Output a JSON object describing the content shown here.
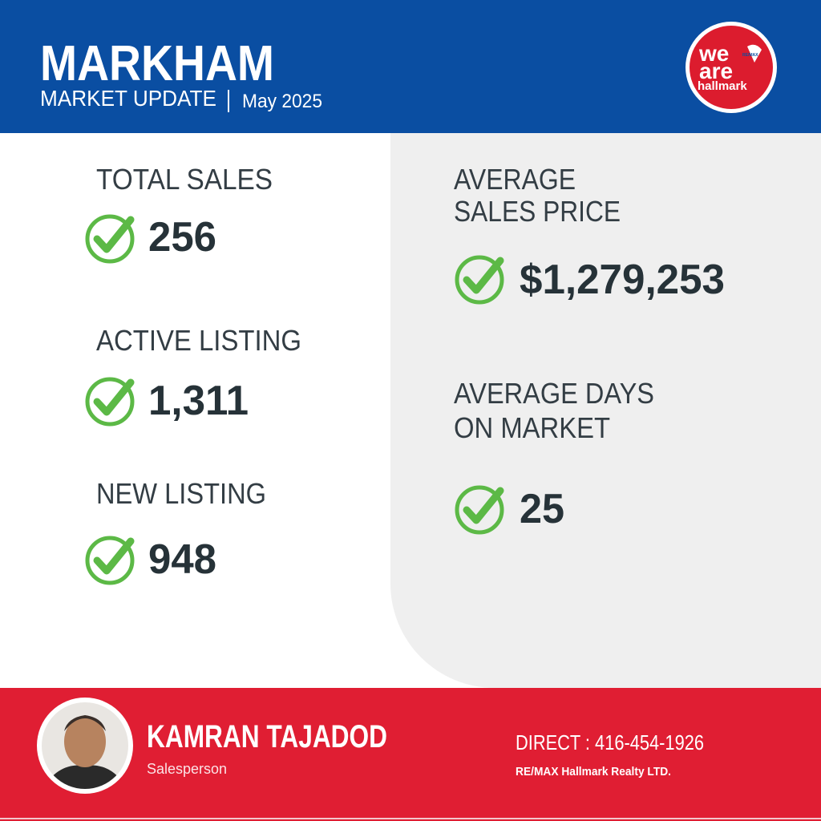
{
  "header": {
    "title": "MARKHAM",
    "subtitle": "MARKET UPDATE",
    "date": "May 2025"
  },
  "logo": {
    "line1": "we",
    "line2": "are",
    "line3": "hallmark",
    "badge": "RE/MAX"
  },
  "stats": [
    {
      "label": [
        "TOTAL SALES"
      ],
      "value": "256"
    },
    {
      "label": [
        "ACTIVE LISTING"
      ],
      "value": "1,311"
    },
    {
      "label": [
        "NEW LISTING"
      ],
      "value": "948"
    },
    {
      "label": [
        "AVERAGE",
        "SALES PRICE"
      ],
      "value": "$1,279,253"
    },
    {
      "label": [
        "AVERAGE DAYS",
        "ON MARKET"
      ],
      "value": "25"
    }
  ],
  "agent": {
    "name": "KAMRAN TAJADOD",
    "role": "Salesperson",
    "direct": "DIRECT : 416-454-1926",
    "company": "RE/MAX Hallmark Realty LTD."
  }
}
